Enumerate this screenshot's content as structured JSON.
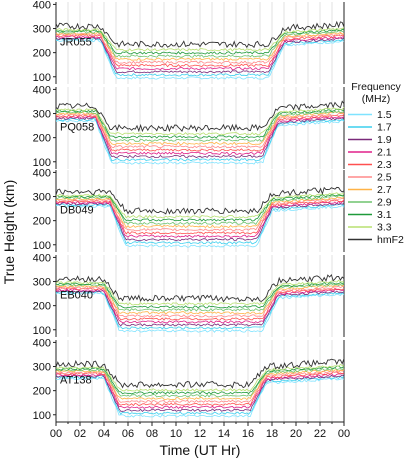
{
  "chart_data": {
    "type": "line",
    "xlabel": "Time (UT Hr)",
    "ylabel": "True Height (km)",
    "x_ticks": [
      "00",
      "02",
      "04",
      "06",
      "08",
      "10",
      "12",
      "14",
      "16",
      "18",
      "20",
      "22",
      "00"
    ],
    "x_range_hours": [
      0,
      24
    ],
    "y_ticks": [
      100,
      200,
      300,
      400
    ],
    "ylim": [
      70,
      410
    ],
    "legend": {
      "title": "Frequency\n(MHz)",
      "placement": "right",
      "entries": [
        {
          "name": "1.5",
          "color": "#7fe3ff"
        },
        {
          "name": "1.7",
          "color": "#3ccfee"
        },
        {
          "name": "1.9",
          "color": "#7a2a7a"
        },
        {
          "name": "2.1",
          "color": "#e0208a"
        },
        {
          "name": "2.3",
          "color": "#ff5050"
        },
        {
          "name": "2.5",
          "color": "#ff8a8a"
        },
        {
          "name": "2.7",
          "color": "#ffb347"
        },
        {
          "name": "2.9",
          "color": "#6fc36f"
        },
        {
          "name": "3.1",
          "color": "#1f9a3a"
        },
        {
          "name": "3.3",
          "color": "#b8e070"
        },
        {
          "name": "hmF2",
          "color": "#333333"
        }
      ]
    },
    "panels": [
      {
        "station": "JR055",
        "night_hmf2": 300,
        "day_hmf2": 225,
        "day_start": 4.2,
        "day_end": 18.5,
        "day_low": 95
      },
      {
        "station": "PQ058",
        "night_hmf2": 320,
        "day_hmf2": 230,
        "day_start": 3.8,
        "day_end": 18.0,
        "day_low": 95
      },
      {
        "station": "DB049",
        "night_hmf2": 310,
        "day_hmf2": 230,
        "day_start": 5.0,
        "day_end": 17.5,
        "day_low": 95
      },
      {
        "station": "EB040",
        "night_hmf2": 300,
        "day_hmf2": 220,
        "day_start": 4.5,
        "day_end": 18.0,
        "day_low": 95
      },
      {
        "station": "AT138",
        "night_hmf2": 300,
        "day_hmf2": 215,
        "day_start": 4.5,
        "day_end": 17.0,
        "day_low": 95
      }
    ]
  }
}
